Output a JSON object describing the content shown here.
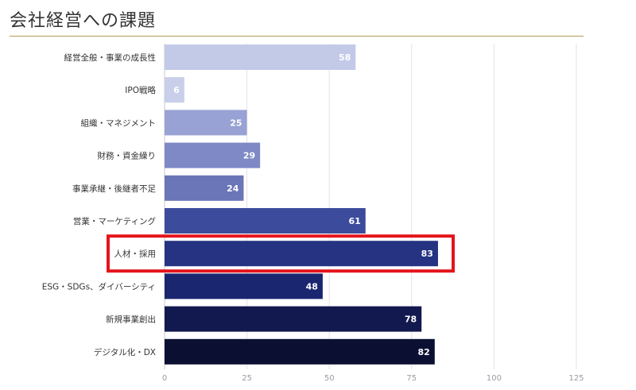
{
  "title": "会社経営への課題",
  "colors": {
    "title_rule": "#b59a5a",
    "grid": "#e3e3ea",
    "axis": "#c8c8d2",
    "tick_label": "#9a9aa6",
    "category_label": "#333333",
    "value_label": "#ffffff",
    "highlight_box": "#e5141b"
  },
  "chart_data": {
    "type": "bar",
    "orientation": "horizontal",
    "categories": [
      "経営全般・事業の成長性",
      "IPO戦略",
      "組織・マネジメント",
      "財務・資金繰り",
      "事業承継・後継者不足",
      "営業・マーケティング",
      "人材・採用",
      "ESG・SDGs、ダイバーシティ",
      "新規事業創出",
      "デジタル化・DX"
    ],
    "values": [
      58,
      6,
      25,
      29,
      24,
      61,
      83,
      48,
      78,
      82
    ],
    "bar_colors": [
      "#c3cae8",
      "#c9cfea",
      "#98a2d4",
      "#7e89c6",
      "#6a76b8",
      "#3c4b9c",
      "#253382",
      "#1b2670",
      "#12194f",
      "#0b1033"
    ],
    "xlim": [
      0,
      125
    ],
    "xticks": [
      0,
      25,
      50,
      75,
      100,
      125
    ],
    "grid": true,
    "highlight_category": "人材・採用"
  }
}
